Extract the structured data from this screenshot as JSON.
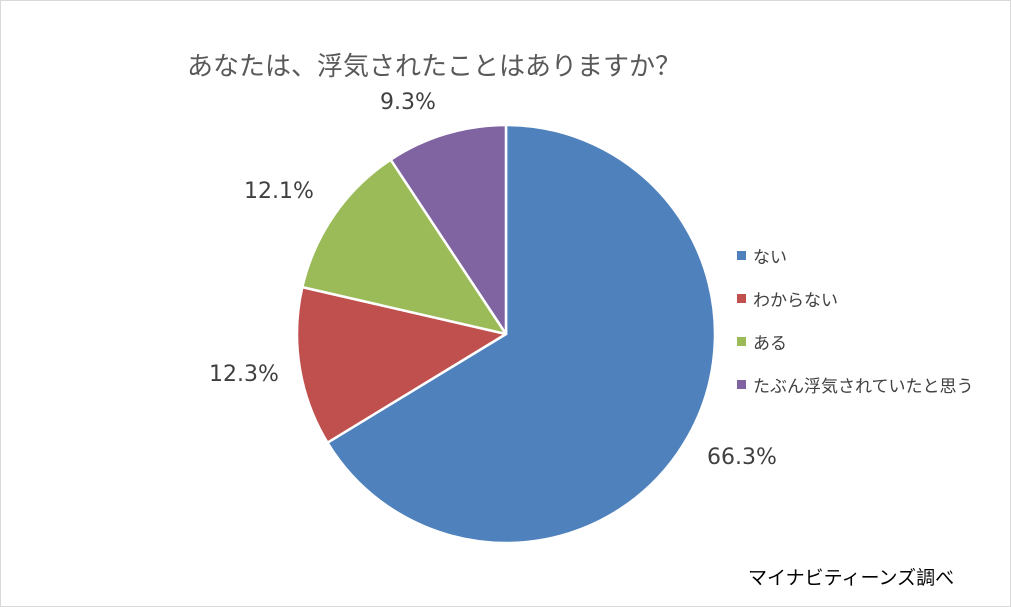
{
  "chart_data": {
    "type": "pie",
    "title": "あなたは、浮気されたことはありますか？",
    "slices": [
      {
        "label": "ない",
        "value": 66.3,
        "value_label": "66.3%",
        "color": "#4f81bd"
      },
      {
        "label": "わからない",
        "value": 12.3,
        "value_label": "12.3%",
        "color": "#c0504d"
      },
      {
        "label": "ある",
        "value": 12.1,
        "value_label": "12.1%",
        "color": "#9bbb59"
      },
      {
        "label": "たぶん浮気されていたと思う",
        "value": 9.3,
        "value_label": "9.3%",
        "color": "#8064a2"
      }
    ],
    "legend_position": "right",
    "start_angle": "12 o'clock",
    "direction": "clockwise"
  },
  "source_note": "マイナビティーンズ調べ"
}
